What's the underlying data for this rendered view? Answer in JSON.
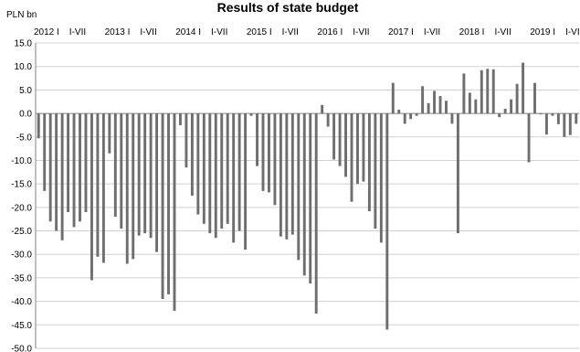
{
  "chart_data": {
    "type": "bar",
    "title": "Results of state budget",
    "unit_label": "PLN bn",
    "ylim": [
      -50,
      15
    ],
    "y_ticks": [
      "15.0",
      "10.0",
      "5.0",
      "0.0",
      "-5.0",
      "-10.0",
      "-15.0",
      "-20.0",
      "-25.0",
      "-30.0",
      "-35.0",
      "-40.0",
      "-45.0",
      "-50.0"
    ],
    "y_tick_values": [
      15,
      10,
      5,
      0,
      -5,
      -10,
      -15,
      -20,
      -25,
      -30,
      -35,
      -40,
      -45,
      -50
    ],
    "x_tick_labels": [
      {
        "text": "2012 I",
        "index": 0
      },
      {
        "text": "I-VII",
        "index": 6
      },
      {
        "text": "2013 I",
        "index": 12
      },
      {
        "text": "I-VII",
        "index": 18
      },
      {
        "text": "2014 I",
        "index": 24
      },
      {
        "text": "I-VII",
        "index": 30
      },
      {
        "text": "2015 I",
        "index": 36
      },
      {
        "text": "I-VII",
        "index": 42
      },
      {
        "text": "2016 I",
        "index": 48
      },
      {
        "text": "I-VII",
        "index": 54
      },
      {
        "text": "2017 I",
        "index": 60
      },
      {
        "text": "I-VII",
        "index": 66
      },
      {
        "text": "2018 I",
        "index": 72
      },
      {
        "text": "I-VII",
        "index": 78
      },
      {
        "text": "2019 I",
        "index": 84
      },
      {
        "text": "I-VII",
        "index": 90
      }
    ],
    "grid": true,
    "values": [
      -5.3,
      -16.5,
      -23,
      -25,
      -27,
      -21,
      -24.2,
      -23,
      -21,
      -35.5,
      -30.5,
      -31.8,
      -8.5,
      -22,
      -24.5,
      -32,
      -31,
      -26,
      -25.5,
      -26.5,
      -29.5,
      -39.5,
      -38.5,
      -42,
      -2.5,
      -11.5,
      -17.5,
      -21.5,
      -23.5,
      -25.5,
      -26.5,
      -24.5,
      -23.5,
      -27.5,
      -25,
      -29,
      -0.5,
      -11.2,
      -16.5,
      -16.8,
      -19.5,
      -26.2,
      -26.8,
      -25.8,
      -31.2,
      -34.5,
      -36.2,
      -42.6,
      1.8,
      -2.8,
      -9.8,
      -11.2,
      -13.5,
      -18.8,
      -15,
      -14.5,
      -20.8,
      -24.5,
      -27.5,
      -46,
      6.5,
      0.8,
      -2.2,
      -1.2,
      -0.5,
      5.8,
      2.2,
      4.8,
      3.7,
      2.7,
      -2.2,
      -25.5,
      8.5,
      4.4,
      3,
      9.2,
      9.5,
      9.4,
      -0.8,
      1,
      3,
      6.3,
      10.8,
      -10.4,
      6.5,
      -0.2,
      -4.5,
      -0.5,
      -2.3,
      -5,
      -4.6,
      -2.2
    ],
    "bar_color": "#6e6e6e"
  }
}
